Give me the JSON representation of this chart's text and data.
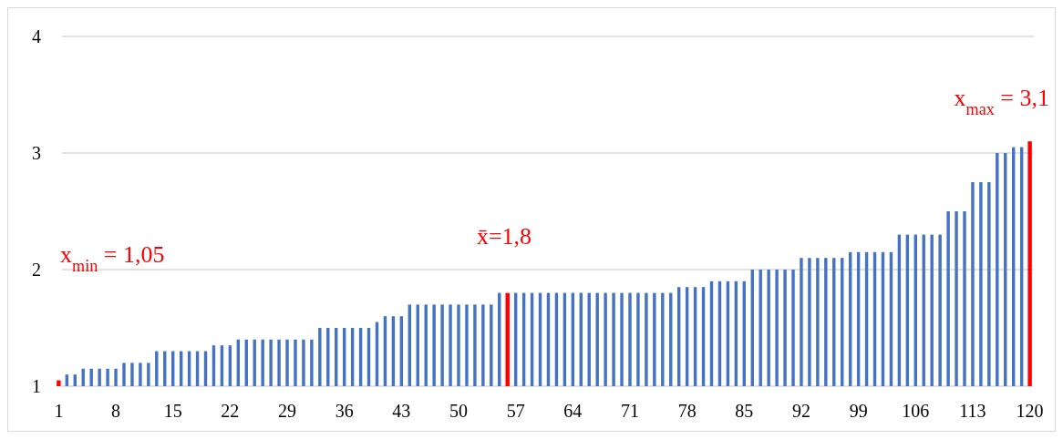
{
  "chart_data": {
    "type": "bar",
    "categories": [
      "1",
      null,
      null,
      null,
      null,
      null,
      null,
      "8",
      null,
      null,
      null,
      null,
      null,
      null,
      "15",
      null,
      null,
      null,
      null,
      null,
      null,
      "22",
      null,
      null,
      null,
      null,
      null,
      null,
      "29",
      null,
      null,
      null,
      null,
      null,
      null,
      "36",
      null,
      null,
      null,
      null,
      null,
      null,
      "43",
      null,
      null,
      null,
      null,
      null,
      null,
      "50",
      null,
      null,
      null,
      null,
      null,
      null,
      "57",
      null,
      null,
      null,
      null,
      null,
      null,
      "64",
      null,
      null,
      null,
      null,
      null,
      null,
      "71",
      null,
      null,
      null,
      null,
      null,
      null,
      "78",
      null,
      null,
      null,
      null,
      null,
      null,
      "85",
      null,
      null,
      null,
      null,
      null,
      null,
      "92",
      null,
      null,
      null,
      null,
      null,
      null,
      "99",
      null,
      null,
      null,
      null,
      null,
      null,
      "106",
      null,
      null,
      null,
      null,
      null,
      null,
      "113",
      null,
      null,
      null,
      null,
      null,
      null,
      "120"
    ],
    "values": [
      1.05,
      1.1,
      1.1,
      1.15,
      1.15,
      1.15,
      1.15,
      1.15,
      1.2,
      1.2,
      1.2,
      1.2,
      1.3,
      1.3,
      1.3,
      1.3,
      1.3,
      1.3,
      1.3,
      1.35,
      1.35,
      1.35,
      1.4,
      1.4,
      1.4,
      1.4,
      1.4,
      1.4,
      1.4,
      1.4,
      1.4,
      1.4,
      1.5,
      1.5,
      1.5,
      1.5,
      1.5,
      1.5,
      1.5,
      1.55,
      1.6,
      1.6,
      1.6,
      1.7,
      1.7,
      1.7,
      1.7,
      1.7,
      1.7,
      1.7,
      1.7,
      1.7,
      1.7,
      1.7,
      1.8,
      1.8,
      1.8,
      1.8,
      1.8,
      1.8,
      1.8,
      1.8,
      1.8,
      1.8,
      1.8,
      1.8,
      1.8,
      1.8,
      1.8,
      1.8,
      1.8,
      1.8,
      1.8,
      1.8,
      1.8,
      1.8,
      1.85,
      1.85,
      1.85,
      1.85,
      1.9,
      1.9,
      1.9,
      1.9,
      1.9,
      2,
      2,
      2,
      2,
      2,
      2,
      2.1,
      2.1,
      2.1,
      2.1,
      2.1,
      2.1,
      2.15,
      2.15,
      2.15,
      2.15,
      2.15,
      2.15,
      2.3,
      2.3,
      2.3,
      2.3,
      2.3,
      2.3,
      2.5,
      2.5,
      2.5,
      2.75,
      2.75,
      2.75,
      3,
      3,
      3.05,
      3.05,
      3.1
    ],
    "colors": [
      "#ff0000",
      "#4472c4",
      "#4472c4",
      "#4472c4",
      "#4472c4",
      "#4472c4",
      "#4472c4",
      "#4472c4",
      "#4472c4",
      "#4472c4",
      "#4472c4",
      "#4472c4",
      "#4472c4",
      "#4472c4",
      "#4472c4",
      "#4472c4",
      "#4472c4",
      "#4472c4",
      "#4472c4",
      "#4472c4",
      "#4472c4",
      "#4472c4",
      "#4472c4",
      "#4472c4",
      "#4472c4",
      "#4472c4",
      "#4472c4",
      "#4472c4",
      "#4472c4",
      "#4472c4",
      "#4472c4",
      "#4472c4",
      "#4472c4",
      "#4472c4",
      "#4472c4",
      "#4472c4",
      "#4472c4",
      "#4472c4",
      "#4472c4",
      "#4472c4",
      "#4472c4",
      "#4472c4",
      "#4472c4",
      "#4472c4",
      "#4472c4",
      "#4472c4",
      "#4472c4",
      "#4472c4",
      "#4472c4",
      "#4472c4",
      "#4472c4",
      "#4472c4",
      "#4472c4",
      "#4472c4",
      "#4472c4",
      "#ff0000",
      "#4472c4",
      "#4472c4",
      "#4472c4",
      "#4472c4",
      "#4472c4",
      "#4472c4",
      "#4472c4",
      "#4472c4",
      "#4472c4",
      "#4472c4",
      "#4472c4",
      "#4472c4",
      "#4472c4",
      "#4472c4",
      "#4472c4",
      "#4472c4",
      "#4472c4",
      "#4472c4",
      "#4472c4",
      "#4472c4",
      "#4472c4",
      "#4472c4",
      "#4472c4",
      "#4472c4",
      "#4472c4",
      "#4472c4",
      "#4472c4",
      "#4472c4",
      "#4472c4",
      "#4472c4",
      "#4472c4",
      "#4472c4",
      "#4472c4",
      "#4472c4",
      "#4472c4",
      "#4472c4",
      "#4472c4",
      "#4472c4",
      "#4472c4",
      "#4472c4",
      "#4472c4",
      "#4472c4",
      "#4472c4",
      "#4472c4",
      "#4472c4",
      "#4472c4",
      "#4472c4",
      "#4472c4",
      "#4472c4",
      "#4472c4",
      "#4472c4",
      "#4472c4",
      "#4472c4",
      "#4472c4",
      "#4472c4",
      "#4472c4",
      "#4472c4",
      "#4472c4",
      "#4472c4",
      "#4472c4",
      "#4472c4",
      "#4472c4",
      "#4472c4",
      "#ff0000"
    ],
    "ylim": [
      1,
      4
    ],
    "yticks": [
      1,
      2,
      3,
      4
    ],
    "grid": "y",
    "annotations": [
      "x$_{min}$ = 1,05",
      "x̄=1,8",
      "x$_{max}$ = 3,1"
    ]
  }
}
